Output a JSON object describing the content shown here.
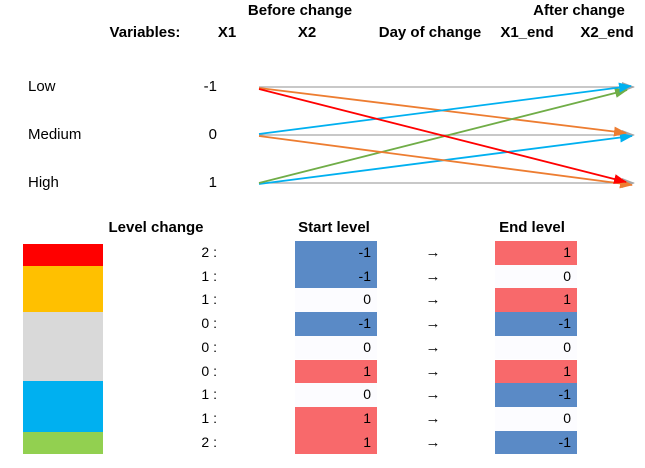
{
  "title_row": {
    "before": "Before change",
    "after": "After change"
  },
  "columns": {
    "variables": "Variables:",
    "x1": "X1",
    "x2": "X2",
    "day": "Day of change",
    "x1_end": "X1_end",
    "x2_end": "X2_end"
  },
  "slopegraph": {
    "levels": [
      {
        "label": "Low",
        "value": "-1"
      },
      {
        "label": "Medium",
        "value": "0"
      },
      {
        "label": "High",
        "value": "1"
      }
    ],
    "line_color": "#A6A6A6",
    "arrows": [
      {
        "color": "#00B0F0",
        "from": "High",
        "to": "Medium"
      },
      {
        "color": "#ED7D31",
        "from": "Low",
        "to": "Medium"
      },
      {
        "color": "#70AD47",
        "from": "High",
        "to": "Low"
      },
      {
        "color": "#00B0F0",
        "from": "Medium",
        "to": "Low"
      },
      {
        "color": "#ED7D31",
        "from": "Medium",
        "to": "High"
      },
      {
        "color": "#FF0000",
        "from": "Low",
        "to": "High"
      }
    ]
  },
  "legend": [
    {
      "color": "#FF0000",
      "row_span": 1
    },
    {
      "color": "#FFC000",
      "row_span": 2
    },
    {
      "color": "#D9D9D9",
      "row_span": 3
    },
    {
      "color": "#00B0F0",
      "row_span": 2
    },
    {
      "color": "#92D050",
      "row_span": 1
    }
  ],
  "table": {
    "level_change_header": "Level change",
    "start_header": "Start level",
    "end_header": "End level",
    "arrow": "→",
    "value_colors": {
      "-1": "#5A8AC6",
      "0": "#FCFCFF",
      "1": "#F8696B"
    },
    "rows": [
      {
        "change": "2 :",
        "start": "-1",
        "end": "1"
      },
      {
        "change": "1 :",
        "start": "-1",
        "end": "0"
      },
      {
        "change": "1 :",
        "start": "0",
        "end": "1"
      },
      {
        "change": "0 :",
        "start": "-1",
        "end": "-1"
      },
      {
        "change": "0 :",
        "start": "0",
        "end": "0"
      },
      {
        "change": "0 :",
        "start": "1",
        "end": "1"
      },
      {
        "change": "1 :",
        "start": "0",
        "end": "-1"
      },
      {
        "change": "1 :",
        "start": "1",
        "end": "0"
      },
      {
        "change": "2 :",
        "start": "1",
        "end": "-1"
      }
    ]
  }
}
